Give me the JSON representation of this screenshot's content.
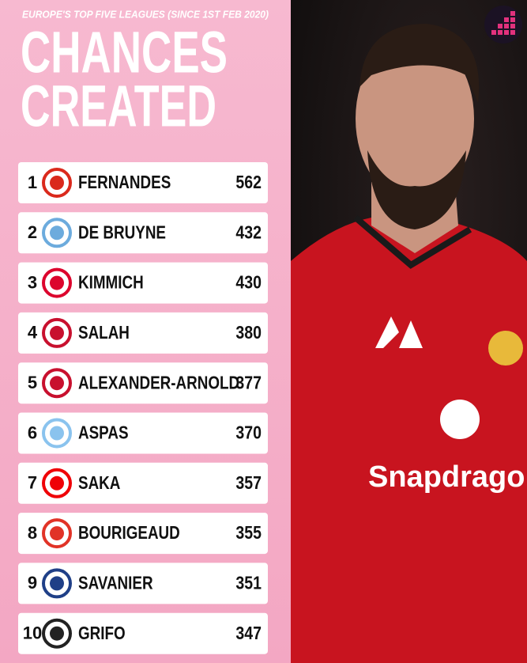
{
  "header": {
    "subtitle": "EUROPE'S TOP FIVE LEAGUES (SINCE 1ST FEB 2020)",
    "title_lines": [
      "CHANCES",
      "CREATED"
    ]
  },
  "table": {
    "rows": [
      [
        1,
        "FERNANDES",
        562
      ],
      [
        2,
        "DE BRUYNE",
        432
      ],
      [
        3,
        "KIMMICH",
        430
      ],
      [
        4,
        "SALAH",
        380
      ],
      [
        5,
        "ALEXANDER-ARNOLD",
        377
      ],
      [
        6,
        "ASPAS",
        370
      ],
      [
        7,
        "SAKA",
        357
      ],
      [
        8,
        "BOURIGEAUD",
        355
      ],
      [
        9,
        "SAVANIER",
        351
      ],
      [
        10,
        "GRIFO",
        347
      ]
    ]
  },
  "photo": {
    "sponsor": "Snapdragon"
  }
}
